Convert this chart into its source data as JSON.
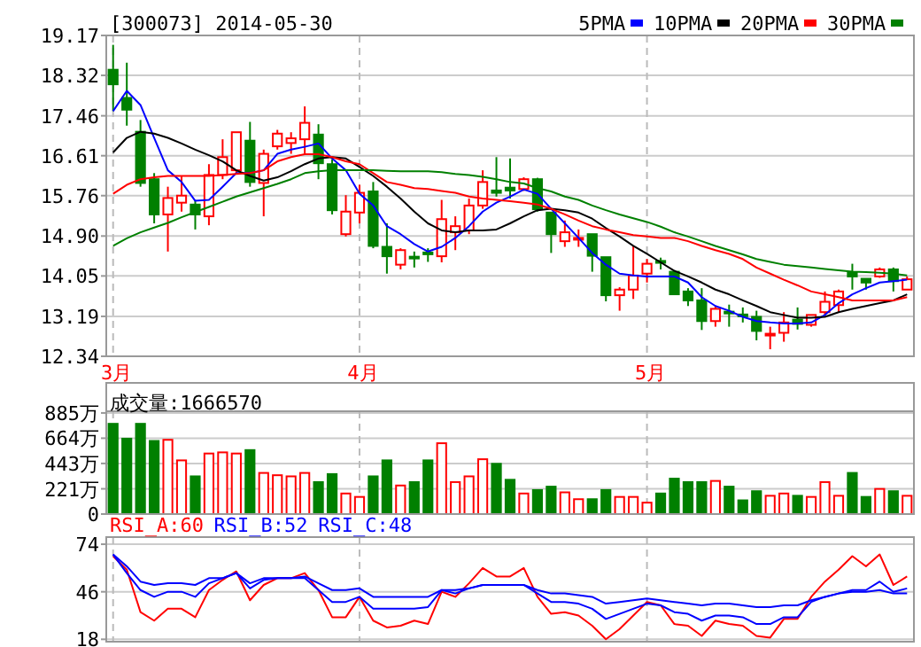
{
  "chart_data": [
    {
      "type": "candlestick",
      "title": "[300073] 2014-05-30",
      "categories": [
        "3月",
        null,
        null,
        null,
        null,
        null,
        null,
        null,
        null,
        null,
        null,
        null,
        null,
        null,
        null,
        null,
        null,
        null,
        "4月",
        null,
        null,
        null,
        null,
        null,
        null,
        null,
        null,
        null,
        null,
        null,
        null,
        null,
        null,
        null,
        null,
        null,
        null,
        null,
        null,
        "5月",
        null,
        null,
        null,
        null,
        null,
        null,
        null,
        null,
        null,
        null,
        null,
        null,
        null,
        null,
        null,
        null,
        null,
        null,
        null
      ],
      "ohlc": [
        [
          18.44,
          18.97,
          17.56,
          18.13
        ],
        [
          17.84,
          18.59,
          17.25,
          17.59
        ],
        [
          17.12,
          17.37,
          15.95,
          16.03
        ],
        [
          16.11,
          16.24,
          15.17,
          15.36
        ],
        [
          15.36,
          15.95,
          14.57,
          15.71
        ],
        [
          15.61,
          16.17,
          15.42,
          15.76
        ],
        [
          15.57,
          15.67,
          15.04,
          15.36
        ],
        [
          15.32,
          16.43,
          15.13,
          16.2
        ],
        [
          16.2,
          16.96,
          16.11,
          16.58
        ],
        [
          16.3,
          17.11,
          16.24,
          17.11
        ],
        [
          16.93,
          17.33,
          15.95,
          16.05
        ],
        [
          16.03,
          16.74,
          15.32,
          16.65
        ],
        [
          16.81,
          17.16,
          16.74,
          17.08
        ],
        [
          16.88,
          17.11,
          16.65,
          16.98
        ],
        [
          16.96,
          17.66,
          16.65,
          17.31
        ],
        [
          17.06,
          17.28,
          16.11,
          16.45
        ],
        [
          16.43,
          16.53,
          15.36,
          15.45
        ],
        [
          14.94,
          15.77,
          14.89,
          15.42
        ],
        [
          15.4,
          15.99,
          15.17,
          15.82
        ],
        [
          15.85,
          16.05,
          14.64,
          14.69
        ],
        [
          14.67,
          15.17,
          14.1,
          14.47
        ],
        [
          14.29,
          14.64,
          14.19,
          14.6
        ],
        [
          14.46,
          14.57,
          14.23,
          14.45
        ],
        [
          14.55,
          14.64,
          14.35,
          14.54
        ],
        [
          14.47,
          15.67,
          14.34,
          15.26
        ],
        [
          14.98,
          15.32,
          14.6,
          15.11
        ],
        [
          15.02,
          15.7,
          14.94,
          15.55
        ],
        [
          15.55,
          16.3,
          15.48,
          16.05
        ],
        [
          15.87,
          16.58,
          15.74,
          15.82
        ],
        [
          15.93,
          16.55,
          15.7,
          15.87
        ],
        [
          15.9,
          16.15,
          15.86,
          16.11
        ],
        [
          16.11,
          16.14,
          15.42,
          15.47
        ],
        [
          15.4,
          15.4,
          14.54,
          14.94
        ],
        [
          14.79,
          15.23,
          14.67,
          14.98
        ],
        [
          14.85,
          15.04,
          14.67,
          14.86
        ],
        [
          14.94,
          14.94,
          14.14,
          14.48
        ],
        [
          14.45,
          14.45,
          13.51,
          13.64
        ],
        [
          13.64,
          13.81,
          13.31,
          13.76
        ],
        [
          13.76,
          14.69,
          13.56,
          14.06
        ],
        [
          14.1,
          14.41,
          13.91,
          14.31
        ],
        [
          14.37,
          14.44,
          14.19,
          14.33
        ],
        [
          14.14,
          14.14,
          13.66,
          13.66
        ],
        [
          13.72,
          13.79,
          13.41,
          13.53
        ],
        [
          13.53,
          13.79,
          12.9,
          13.09
        ],
        [
          13.09,
          13.41,
          12.97,
          13.35
        ],
        [
          13.29,
          13.44,
          12.97,
          13.26
        ],
        [
          13.23,
          13.38,
          13.06,
          13.21
        ],
        [
          13.18,
          13.31,
          12.68,
          12.88
        ],
        [
          12.8,
          12.97,
          12.49,
          12.82
        ],
        [
          12.84,
          13.28,
          12.65,
          13.06
        ],
        [
          13.12,
          13.38,
          12.91,
          13.03
        ],
        [
          13.01,
          13.22,
          12.97,
          13.22
        ],
        [
          13.28,
          13.72,
          13.22,
          13.5
        ],
        [
          13.43,
          13.76,
          13.28,
          13.72
        ],
        [
          14.12,
          14.31,
          13.76,
          14.04
        ],
        [
          13.99,
          13.99,
          13.76,
          13.91
        ],
        [
          14.04,
          14.23,
          14.01,
          14.19
        ],
        [
          14.19,
          14.23,
          13.72,
          13.94
        ],
        [
          13.76,
          14.04,
          13.76,
          13.98
        ]
      ],
      "colors": [
        "#008000",
        "#008000",
        "#008000",
        "#008000",
        "#ff0000",
        "#ff0000",
        "#008000",
        "#ff0000",
        "#ff0000",
        "#ff0000",
        "#008000",
        "#ff0000",
        "#ff0000",
        "#ff0000",
        "#ff0000",
        "#008000",
        "#008000",
        "#ff0000",
        "#ff0000",
        "#008000",
        "#008000",
        "#ff0000",
        "#008000",
        "#008000",
        "#ff0000",
        "#ff0000",
        "#ff0000",
        "#ff0000",
        "#008000",
        "#008000",
        "#ff0000",
        "#008000",
        "#008000",
        "#ff0000",
        "#ff0000",
        "#008000",
        "#008000",
        "#ff0000",
        "#ff0000",
        "#ff0000",
        "#008000",
        "#008000",
        "#008000",
        "#008000",
        "#ff0000",
        "#008000",
        "#008000",
        "#008000",
        "#ff0000",
        "#ff0000",
        "#008000",
        "#ff0000",
        "#ff0000",
        "#ff0000",
        "#008000",
        "#008000",
        "#ff0000",
        "#008000",
        "#ff0000"
      ],
      "series": [
        {
          "name": "5PMA",
          "type": "line",
          "color": "#0000ff",
          "values": [
            17.56,
            17.99,
            17.69,
            16.99,
            16.3,
            16.05,
            15.65,
            15.67,
            15.95,
            16.24,
            16.24,
            16.3,
            16.65,
            16.74,
            16.8,
            16.87,
            16.55,
            16.3,
            15.8,
            15.55,
            15.11,
            14.94,
            14.73,
            14.57,
            14.67,
            14.86,
            15.11,
            15.42,
            15.61,
            15.74,
            15.89,
            15.8,
            15.48,
            15.17,
            14.86,
            14.54,
            14.29,
            14.1,
            14.06,
            14.04,
            14.04,
            14.04,
            13.91,
            13.6,
            13.41,
            13.31,
            13.18,
            13.09,
            13.06,
            13.04,
            13.04,
            13.06,
            13.22,
            13.47,
            13.66,
            13.79,
            13.91,
            13.94,
            13.97
          ]
        },
        {
          "name": "10PMA",
          "type": "line",
          "color": "#000000",
          "values": [
            16.68,
            16.99,
            17.12,
            17.08,
            16.99,
            16.87,
            16.74,
            16.62,
            16.49,
            16.3,
            16.18,
            16.08,
            16.15,
            16.28,
            16.43,
            16.55,
            16.58,
            16.55,
            16.37,
            16.18,
            15.95,
            15.7,
            15.42,
            15.17,
            15.02,
            14.98,
            15.02,
            15.02,
            15.04,
            15.17,
            15.32,
            15.45,
            15.48,
            15.45,
            15.4,
            15.27,
            15.07,
            14.89,
            14.69,
            14.52,
            14.34,
            14.16,
            14.04,
            13.91,
            13.76,
            13.66,
            13.53,
            13.41,
            13.28,
            13.22,
            13.16,
            13.16,
            13.18,
            13.28,
            13.35,
            13.41,
            13.47,
            13.53,
            13.66
          ]
        },
        {
          "name": "20PMA",
          "type": "line",
          "color": "#ff0000",
          "values": [
            15.8,
            15.99,
            16.11,
            16.15,
            16.18,
            16.18,
            16.18,
            16.18,
            16.2,
            16.22,
            16.24,
            16.3,
            16.49,
            16.58,
            16.64,
            16.64,
            16.58,
            16.49,
            16.43,
            16.24,
            16.05,
            15.99,
            15.92,
            15.9,
            15.86,
            15.82,
            15.74,
            15.7,
            15.67,
            15.64,
            15.61,
            15.57,
            15.48,
            15.36,
            15.23,
            15.11,
            15.04,
            14.98,
            14.92,
            14.89,
            14.86,
            14.86,
            14.79,
            14.69,
            14.6,
            14.52,
            14.41,
            14.23,
            14.1,
            13.97,
            13.85,
            13.72,
            13.66,
            13.6,
            13.53,
            13.53,
            13.53,
            13.53,
            13.6
          ]
        },
        {
          "name": "30PMA",
          "type": "line",
          "color": "#008000",
          "values": [
            14.69,
            14.85,
            14.98,
            15.08,
            15.18,
            15.3,
            15.41,
            15.52,
            15.63,
            15.74,
            15.83,
            15.92,
            16.01,
            16.11,
            16.24,
            16.28,
            16.3,
            16.3,
            16.3,
            16.3,
            16.29,
            16.28,
            16.28,
            16.28,
            16.26,
            16.22,
            16.2,
            16.16,
            16.11,
            16.05,
            16.02,
            15.92,
            15.85,
            15.74,
            15.67,
            15.55,
            15.45,
            15.36,
            15.28,
            15.2,
            15.1,
            14.98,
            14.89,
            14.79,
            14.69,
            14.6,
            14.51,
            14.41,
            14.35,
            14.29,
            14.26,
            14.23,
            14.2,
            14.17,
            14.14,
            14.13,
            14.12,
            14.1,
            14.06
          ]
        }
      ],
      "ylim": [
        12.34,
        19.17
      ],
      "yticks": [
        19.17,
        18.32,
        17.46,
        16.61,
        15.76,
        {
          "value": 14.9,
          "label": "14.90"
        },
        14.05,
        13.19,
        12.34
      ],
      "grid": true,
      "legend": "top right"
    },
    {
      "type": "bar",
      "title": "成交量:1666570",
      "categories": [
        null,
        null,
        null,
        null,
        null,
        null,
        null,
        null,
        null,
        null,
        null,
        null,
        null,
        null,
        null,
        null,
        null,
        null,
        null,
        null,
        null,
        null,
        null,
        null,
        null,
        null,
        null,
        null,
        null,
        null,
        null,
        null,
        null,
        null,
        null,
        null,
        null,
        null,
        null,
        null,
        null,
        null,
        null,
        null,
        null,
        null,
        null,
        null,
        null,
        null,
        null,
        null,
        null,
        null,
        null,
        null,
        null,
        null,
        null
      ],
      "values": [
        790,
        660,
        790,
        640,
        650,
        470,
        330,
        530,
        540,
        530,
        560,
        360,
        340,
        330,
        360,
        280,
        350,
        180,
        150,
        330,
        470,
        250,
        280,
        470,
        620,
        280,
        330,
        480,
        440,
        300,
        180,
        210,
        240,
        190,
        130,
        130,
        210,
        150,
        150,
        100,
        180,
        310,
        280,
        280,
        290,
        240,
        120,
        200,
        160,
        180,
        160,
        150,
        280,
        160,
        360,
        150,
        220,
        200,
        160
      ],
      "colors": [
        "#008000",
        "#008000",
        "#008000",
        "#008000",
        "#ff0000",
        "#ff0000",
        "#008000",
        "#ff0000",
        "#ff0000",
        "#ff0000",
        "#008000",
        "#ff0000",
        "#ff0000",
        "#ff0000",
        "#ff0000",
        "#008000",
        "#008000",
        "#ff0000",
        "#ff0000",
        "#008000",
        "#008000",
        "#ff0000",
        "#008000",
        "#008000",
        "#ff0000",
        "#ff0000",
        "#ff0000",
        "#ff0000",
        "#008000",
        "#008000",
        "#ff0000",
        "#008000",
        "#008000",
        "#ff0000",
        "#ff0000",
        "#008000",
        "#008000",
        "#ff0000",
        "#ff0000",
        "#ff0000",
        "#008000",
        "#008000",
        "#008000",
        "#008000",
        "#ff0000",
        "#008000",
        "#008000",
        "#008000",
        "#ff0000",
        "#ff0000",
        "#008000",
        "#ff0000",
        "#ff0000",
        "#ff0000",
        "#008000",
        "#008000",
        "#ff0000",
        "#008000",
        "#ff0000"
      ],
      "ylim": [
        0,
        900
      ],
      "yticks": [
        {
          "value": 885,
          "label": "885万"
        },
        {
          "value": 664,
          "label": "664万"
        },
        {
          "value": 443,
          "label": "443万"
        },
        {
          "value": 221,
          "label": "221万"
        },
        0
      ],
      "grid": true,
      "tick_labels": "y"
    },
    {
      "type": "line",
      "categories": [
        null,
        null,
        null,
        null,
        null,
        null,
        null,
        null,
        null,
        null,
        null,
        null,
        null,
        null,
        null,
        null,
        null,
        null,
        null,
        null,
        null,
        null,
        null,
        null,
        null,
        null,
        null,
        null,
        null,
        null,
        null,
        null,
        null,
        null,
        null,
        null,
        null,
        null,
        null,
        null,
        null,
        null,
        null,
        null,
        null,
        null,
        null,
        null,
        null,
        null,
        null,
        null,
        null,
        null,
        null,
        null,
        null,
        null,
        null
      ],
      "series": [
        {
          "name": "RSI_A:60",
          "color": "#ff0000",
          "values": [
            67,
            59,
            34,
            29,
            36,
            36,
            31,
            47,
            53,
            58,
            41,
            50,
            54,
            54,
            57,
            47,
            31,
            31,
            43,
            29,
            25,
            26,
            29,
            27,
            46,
            43,
            51,
            60,
            55,
            55,
            60,
            43,
            33,
            34,
            32,
            26,
            18,
            24,
            32,
            40,
            38,
            27,
            26,
            20,
            29,
            27,
            26,
            20,
            19,
            30,
            30,
            43,
            52,
            59,
            67,
            61,
            68,
            50,
            55
          ]
        },
        {
          "name": "RSI_B:52",
          "color": "#0000ff",
          "values": [
            68,
            57,
            47,
            43,
            46,
            46,
            43,
            51,
            54,
            57,
            48,
            53,
            54,
            54,
            54,
            47,
            40,
            40,
            43,
            36,
            36,
            36,
            36,
            37,
            47,
            45,
            48,
            50,
            50,
            50,
            50,
            45,
            40,
            40,
            39,
            36,
            30,
            33,
            36,
            39,
            38,
            34,
            33,
            29,
            32,
            32,
            31,
            27,
            27,
            31,
            31,
            40,
            43,
            45,
            47,
            47,
            52,
            46,
            48
          ]
        },
        {
          "name": "RSI_C:48",
          "color": "#0000ff",
          "values": [
            68,
            61,
            52,
            50,
            51,
            51,
            50,
            54,
            54,
            57,
            51,
            54,
            54,
            54,
            55,
            51,
            47,
            47,
            48,
            43,
            43,
            43,
            43,
            43,
            47,
            47,
            48,
            50,
            50,
            50,
            50,
            47,
            45,
            45,
            44,
            43,
            39,
            40,
            41,
            42,
            41,
            40,
            39,
            38,
            39,
            39,
            38,
            37,
            37,
            38,
            38,
            41,
            43,
            45,
            46,
            46,
            47,
            45,
            45
          ]
        }
      ],
      "ylim": [
        16.6,
        78.2
      ],
      "yticks": [
        74,
        46,
        18
      ],
      "grid": true,
      "legend": "top left",
      "tick_labels": "y"
    }
  ]
}
